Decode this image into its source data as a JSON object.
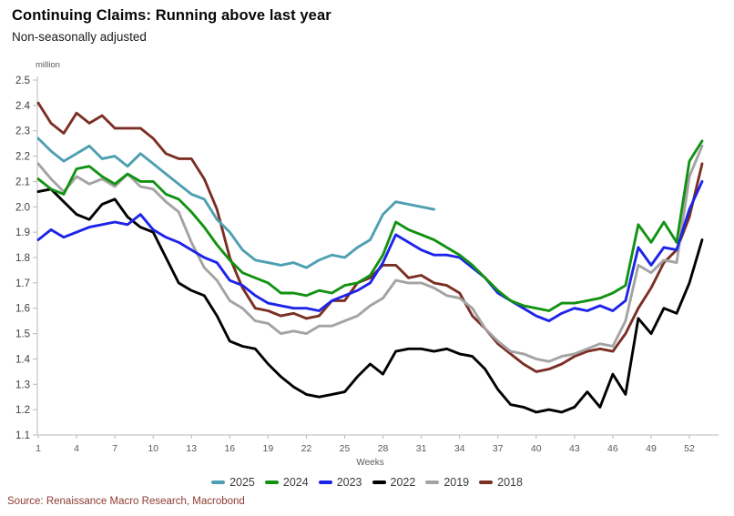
{
  "header": {
    "title": "Continuing Claims: Running above last year",
    "subtitle": "Non-seasonally adjusted"
  },
  "source": {
    "text": "Source: Renaissance Macro Research, Macrobond"
  },
  "styles": {
    "axis_color": "#b8b8b8",
    "tick_label_color": "#595959",
    "source_color": "#8E3B30"
  },
  "chart_data": {
    "type": "line",
    "title": "Continuing Claims: Running above last year",
    "subtitle": "Non-seasonally adjusted",
    "xlabel": "Weeks",
    "y_unit_label": "million",
    "ylim": [
      1.1,
      2.5
    ],
    "y_tick_step": 0.1,
    "x_ticks": [
      1,
      4,
      7,
      10,
      13,
      16,
      19,
      22,
      25,
      28,
      31,
      34,
      37,
      40,
      43,
      46,
      49,
      52
    ],
    "x_max_week": 53,
    "grid": false,
    "legend_position": "bottom",
    "series": [
      {
        "name": "2025",
        "color": "#4E9FB1",
        "start_week": 1,
        "values": [
          2.27,
          2.22,
          2.18,
          2.21,
          2.24,
          2.19,
          2.2,
          2.16,
          2.21,
          2.17,
          2.13,
          2.09,
          2.05,
          2.03,
          1.95,
          1.9,
          1.83,
          1.79,
          1.78,
          1.77,
          1.78,
          1.76,
          1.79,
          1.81,
          1.8,
          1.84,
          1.87,
          1.97,
          2.02,
          2.01,
          2.0,
          1.99
        ]
      },
      {
        "name": "2024",
        "color": "#129212",
        "start_week": 1,
        "values": [
          2.11,
          2.07,
          2.05,
          2.15,
          2.16,
          2.12,
          2.09,
          2.13,
          2.1,
          2.1,
          2.05,
          2.03,
          1.98,
          1.92,
          1.85,
          1.79,
          1.74,
          1.72,
          1.7,
          1.66,
          1.66,
          1.65,
          1.67,
          1.66,
          1.69,
          1.7,
          1.73,
          1.81,
          1.94,
          1.91,
          1.89,
          1.87,
          1.84,
          1.81,
          1.77,
          1.72,
          1.67,
          1.63,
          1.61,
          1.6,
          1.59,
          1.62,
          1.62,
          1.63,
          1.64,
          1.66,
          1.69,
          1.93,
          1.86,
          1.94,
          1.86,
          2.18,
          2.26
        ]
      },
      {
        "name": "2023",
        "color": "#1D24E8",
        "start_week": 1,
        "values": [
          1.87,
          1.91,
          1.88,
          1.9,
          1.92,
          1.93,
          1.94,
          1.93,
          1.97,
          1.91,
          1.88,
          1.86,
          1.83,
          1.8,
          1.78,
          1.71,
          1.69,
          1.65,
          1.62,
          1.61,
          1.6,
          1.6,
          1.59,
          1.63,
          1.65,
          1.67,
          1.7,
          1.78,
          1.89,
          1.86,
          1.83,
          1.81,
          1.81,
          1.8,
          1.76,
          1.72,
          1.66,
          1.63,
          1.6,
          1.57,
          1.55,
          1.58,
          1.6,
          1.59,
          1.61,
          1.59,
          1.63,
          1.84,
          1.77,
          1.84,
          1.83,
          1.99,
          2.1
        ]
      },
      {
        "name": "2022",
        "color": "#000000",
        "start_week": 1,
        "values": [
          2.06,
          2.07,
          2.02,
          1.97,
          1.95,
          2.01,
          2.03,
          1.96,
          1.92,
          1.9,
          1.8,
          1.7,
          1.67,
          1.65,
          1.57,
          1.47,
          1.45,
          1.44,
          1.38,
          1.33,
          1.29,
          1.26,
          1.25,
          1.26,
          1.27,
          1.33,
          1.38,
          1.34,
          1.43,
          1.44,
          1.44,
          1.43,
          1.44,
          1.42,
          1.41,
          1.36,
          1.28,
          1.22,
          1.21,
          1.19,
          1.2,
          1.19,
          1.21,
          1.27,
          1.21,
          1.34,
          1.26,
          1.56,
          1.5,
          1.6,
          1.58,
          1.7,
          1.87
        ]
      },
      {
        "name": "2019",
        "color": "#A3A3A3",
        "start_week": 1,
        "values": [
          2.17,
          2.11,
          2.06,
          2.12,
          2.09,
          2.11,
          2.08,
          2.13,
          2.08,
          2.07,
          2.02,
          1.98,
          1.86,
          1.76,
          1.71,
          1.63,
          1.6,
          1.55,
          1.54,
          1.5,
          1.51,
          1.5,
          1.53,
          1.53,
          1.55,
          1.57,
          1.61,
          1.64,
          1.71,
          1.7,
          1.7,
          1.68,
          1.65,
          1.64,
          1.6,
          1.52,
          1.47,
          1.43,
          1.42,
          1.4,
          1.39,
          1.41,
          1.42,
          1.44,
          1.46,
          1.45,
          1.55,
          1.77,
          1.74,
          1.79,
          1.78,
          2.12,
          2.24
        ]
      },
      {
        "name": "2018",
        "color": "#7B2F24",
        "start_week": 1,
        "values": [
          2.41,
          2.33,
          2.29,
          2.37,
          2.33,
          2.36,
          2.31,
          2.31,
          2.31,
          2.27,
          2.21,
          2.19,
          2.19,
          2.11,
          1.99,
          1.8,
          1.68,
          1.6,
          1.59,
          1.57,
          1.58,
          1.56,
          1.57,
          1.63,
          1.63,
          1.7,
          1.72,
          1.77,
          1.77,
          1.72,
          1.73,
          1.7,
          1.69,
          1.66,
          1.57,
          1.52,
          1.46,
          1.42,
          1.38,
          1.35,
          1.36,
          1.38,
          1.41,
          1.43,
          1.44,
          1.43,
          1.5,
          1.6,
          1.68,
          1.78,
          1.83,
          1.96,
          2.17
        ]
      }
    ]
  }
}
